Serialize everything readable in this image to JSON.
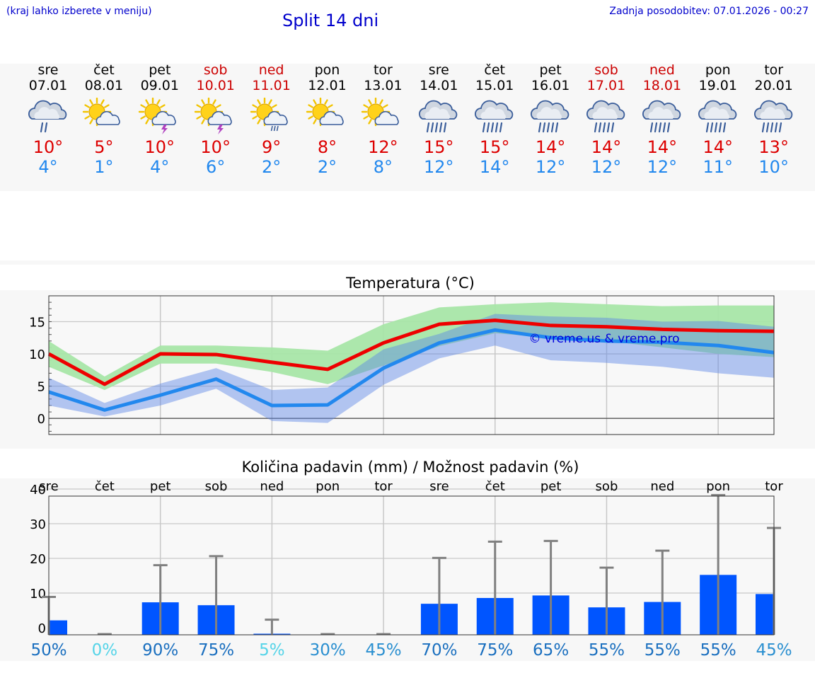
{
  "header": {
    "left_note": "(kraj lahko izberete v meniju)",
    "title": "Split 14 dni",
    "updated": "Zadnja posodobitev: 07.01.2026 - 00:27"
  },
  "days": [
    {
      "name": "sre",
      "date": "07.01",
      "weekend": false,
      "icon": "cloud-rain-icon",
      "max": "10°",
      "min": "4°"
    },
    {
      "name": "čet",
      "date": "08.01",
      "weekend": false,
      "icon": "sun-cloud-icon",
      "max": "5°",
      "min": "1°"
    },
    {
      "name": "pet",
      "date": "09.01",
      "weekend": false,
      "icon": "sun-cloud-thunder-icon",
      "max": "10°",
      "min": "4°"
    },
    {
      "name": "sob",
      "date": "10.01",
      "weekend": true,
      "icon": "sun-cloud-thunder-icon",
      "max": "10°",
      "min": "6°"
    },
    {
      "name": "ned",
      "date": "11.01",
      "weekend": true,
      "icon": "sun-cloud-drizzle-icon",
      "max": "9°",
      "min": "2°"
    },
    {
      "name": "pon",
      "date": "12.01",
      "weekend": false,
      "icon": "sun-cloud-icon",
      "max": "8°",
      "min": "2°"
    },
    {
      "name": "tor",
      "date": "13.01",
      "weekend": false,
      "icon": "sun-cloud-icon",
      "max": "12°",
      "min": "8°"
    },
    {
      "name": "sre",
      "date": "14.01",
      "weekend": false,
      "icon": "cloud-heavy-rain-icon",
      "max": "15°",
      "min": "12°"
    },
    {
      "name": "čet",
      "date": "15.01",
      "weekend": false,
      "icon": "cloud-heavy-rain-icon",
      "max": "15°",
      "min": "14°"
    },
    {
      "name": "pet",
      "date": "16.01",
      "weekend": false,
      "icon": "cloud-heavy-rain-icon",
      "max": "14°",
      "min": "12°"
    },
    {
      "name": "sob",
      "date": "17.01",
      "weekend": true,
      "icon": "cloud-heavy-rain-icon",
      "max": "14°",
      "min": "12°"
    },
    {
      "name": "ned",
      "date": "18.01",
      "weekend": true,
      "icon": "cloud-heavy-rain-icon",
      "max": "14°",
      "min": "12°"
    },
    {
      "name": "pon",
      "date": "19.01",
      "weekend": false,
      "icon": "cloud-heavy-rain-icon",
      "max": "14°",
      "min": "11°"
    },
    {
      "name": "tor",
      "date": "20.01",
      "weekend": false,
      "icon": "cloud-heavy-rain-icon",
      "max": "13°",
      "min": "10°"
    }
  ],
  "colors": {
    "max": "#ee0000",
    "min": "#2288ee",
    "max_band": "#a8e6a8",
    "min_band": "#a8c0f0",
    "overlap_band": "#6fbfa8",
    "bar": "#0055ff",
    "whisker": "#808080"
  },
  "chart_data": [
    {
      "type": "line",
      "title": "Temperatura (°C)",
      "watermark": "© vreme.us & vreme.pro",
      "x": [
        0,
        1,
        2,
        3,
        4,
        5,
        6,
        7,
        8,
        9,
        10,
        11,
        12,
        13
      ],
      "ylim": [
        -2.5,
        19
      ],
      "yticks": [
        0,
        5,
        10,
        15
      ],
      "series": [
        {
          "name": "max",
          "values": [
            10,
            5.3,
            10,
            9.9,
            8.7,
            7.6,
            11.7,
            14.6,
            15.2,
            14.4,
            14.2,
            13.8,
            13.6,
            13.5
          ],
          "band_low": [
            8,
            4.4,
            8.5,
            8.5,
            7.2,
            5.3,
            8.2,
            11.2,
            13.2,
            12.5,
            12,
            11,
            10,
            9.5
          ],
          "band_high": [
            12,
            6.5,
            11.3,
            11.3,
            11,
            10.5,
            14.6,
            17.2,
            17.7,
            18,
            17.7,
            17.4,
            17.5,
            17.5
          ]
        },
        {
          "name": "min",
          "values": [
            4.1,
            1.3,
            3.6,
            6.1,
            2,
            2.1,
            7.8,
            11.7,
            13.7,
            12.5,
            12,
            11.8,
            11.3,
            10.2
          ],
          "band_low": [
            2,
            0.3,
            2,
            4.6,
            -0.4,
            -0.7,
            5.2,
            9.3,
            11.3,
            9,
            8.6,
            8,
            7,
            6.3
          ],
          "band_high": [
            6.3,
            2.4,
            5.4,
            7.8,
            4.4,
            4.8,
            10.7,
            13.1,
            16.2,
            15.8,
            15.6,
            15,
            15.1,
            14.2
          ]
        }
      ]
    },
    {
      "type": "bar",
      "title": "Količina padavin (mm) / Možnost padavin (%)",
      "categories": [
        "sre",
        "čet",
        "pet",
        "sob",
        "ned",
        "pon",
        "tor",
        "sre",
        "čet",
        "pet",
        "sob",
        "ned",
        "pon",
        "tor"
      ],
      "ylim": [
        0,
        40
      ],
      "yticks": [
        0,
        10,
        20,
        30,
        40
      ],
      "values": [
        4,
        0,
        9,
        8.2,
        0.3,
        0,
        0,
        8.6,
        10.2,
        10.9,
        7.6,
        9.1,
        16.6,
        11.3
      ],
      "whisker_max": [
        10.5,
        0,
        19.3,
        21.8,
        4.2,
        0,
        0,
        21.3,
        25.8,
        26,
        18.6,
        23.3,
        38.7,
        29.6
      ],
      "chance": [
        "50%",
        "0%",
        "90%",
        "75%",
        "5%",
        "30%",
        "45%",
        "70%",
        "75%",
        "65%",
        "55%",
        "55%",
        "55%",
        "45%"
      ],
      "chance_colors": [
        "#1a6fbf",
        "#55d4e8",
        "#1a6fbf",
        "#1a6fbf",
        "#55d4e8",
        "#2a8fd0",
        "#2a8fd0",
        "#1a6fbf",
        "#1a6fbf",
        "#1a6fbf",
        "#1a6fbf",
        "#1a6fbf",
        "#1a6fbf",
        "#2a8fd0"
      ]
    }
  ]
}
